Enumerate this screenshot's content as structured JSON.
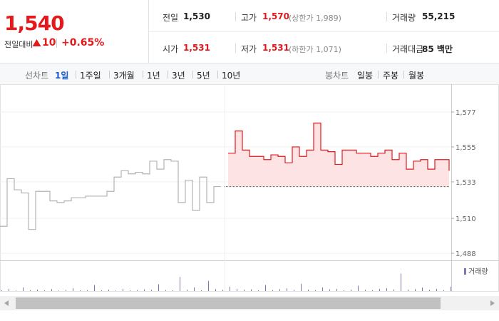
{
  "quote": {
    "price": "1,540",
    "change_label": "전일대비",
    "change": "10",
    "change_rate": "+0.65%",
    "stats": [
      [
        {
          "label": "전일",
          "value": "1,530"
        },
        {
          "label": "고가",
          "value": "1,570",
          "note": "(상한가 1,989)"
        },
        {
          "label": "거래량",
          "value": "55,215"
        }
      ],
      [
        {
          "label": "시가",
          "value": "1,531"
        },
        {
          "label": "저가",
          "value": "1,531",
          "note": "(하한가 1,071)"
        },
        {
          "label": "거래대금",
          "value": "85 백만"
        }
      ]
    ]
  },
  "tabs": {
    "line_label": "선차트",
    "line_periods": [
      "1일",
      "1주일",
      "3개월",
      "1년",
      "3년",
      "5년",
      "10년"
    ],
    "selected": 0,
    "candle_label": "봉차트",
    "candle_periods": [
      "일봉",
      "주봉",
      "월봉"
    ]
  },
  "chart_data": [
    {
      "type": "line",
      "baseline": 1530,
      "ylim": [
        1484,
        1590
      ],
      "yticks": [
        {
          "value": 1577,
          "label": "1,577"
        },
        {
          "value": 1555,
          "label": "1,555"
        },
        {
          "value": 1533,
          "label": "1,533"
        },
        {
          "value": 1510,
          "label": "1,510"
        },
        {
          "value": 1488,
          "label": "1,488"
        }
      ],
      "grid": true,
      "series": [
        {
          "color": "#b4b4b4",
          "values": [
            1505,
            1535,
            1528,
            1526,
            1503,
            1527,
            1527,
            1521,
            1520,
            1521,
            1523,
            1523,
            1524,
            1524,
            1524,
            1527,
            1536,
            1540,
            1538,
            1539,
            1538,
            1546,
            1541,
            1547,
            1546,
            1520,
            1534,
            1515,
            1536,
            1520,
            1530,
            1530,
            null,
            null,
            null,
            null,
            null,
            null,
            null,
            null,
            null,
            null,
            null,
            null,
            null,
            null,
            null,
            null,
            null,
            null,
            null,
            null,
            null,
            null,
            null,
            null,
            null,
            null,
            null,
            null,
            null,
            null,
            null,
            null
          ]
        },
        {
          "color": "#e4191b",
          "fill": "#fde3e3",
          "values": [
            null,
            null,
            null,
            null,
            null,
            null,
            null,
            null,
            null,
            null,
            null,
            null,
            null,
            null,
            null,
            null,
            null,
            null,
            null,
            null,
            null,
            null,
            null,
            null,
            null,
            null,
            null,
            null,
            null,
            null,
            null,
            null,
            1551,
            1565,
            1553,
            1549,
            1549,
            1547,
            1550,
            1549,
            1545,
            1555,
            1549,
            1553,
            1570,
            1553,
            1552,
            1544,
            1553,
            1553,
            1551,
            1551,
            1549,
            1551,
            1553,
            1547,
            1551,
            1541,
            1546,
            1547,
            1541,
            1547,
            1547,
            1540
          ]
        }
      ]
    },
    {
      "type": "bar",
      "ylim": [
        0,
        10000
      ],
      "series": [
        {
          "name": "거래량",
          "color": "#8374b8",
          "values": [
            300,
            900,
            200,
            1500,
            400,
            600,
            300,
            800,
            200,
            500,
            1200,
            300,
            400,
            2500,
            300,
            600,
            200,
            900,
            300,
            400,
            700,
            500,
            2800,
            400,
            300,
            5800,
            600,
            1500,
            300,
            4200,
            800,
            500,
            1800,
            900,
            600,
            700,
            300,
            2500,
            400,
            800,
            1100,
            500,
            3000,
            600,
            400,
            1500,
            700,
            900,
            300,
            600,
            2200,
            500,
            400,
            900,
            1200,
            700,
            7200,
            600,
            800,
            1400,
            500,
            900,
            400,
            1800
          ]
        }
      ]
    }
  ]
}
